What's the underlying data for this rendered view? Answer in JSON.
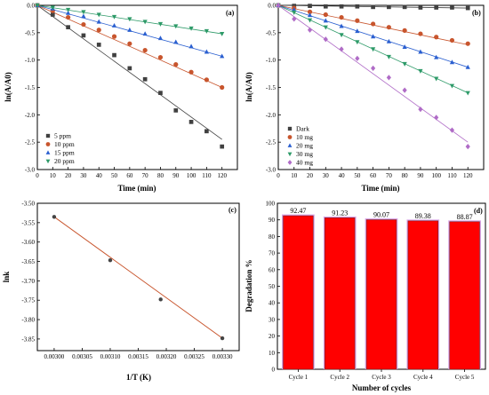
{
  "chart_data": [
    {
      "panel": "(a)",
      "type": "scatter",
      "xlabel": "Time (min)",
      "ylabel": "ln(A/A0)",
      "xlim": [
        0,
        130
      ],
      "ylim": [
        -3.0,
        0.0
      ],
      "xticks": [
        0,
        10,
        20,
        30,
        40,
        50,
        60,
        70,
        80,
        90,
        100,
        110,
        120
      ],
      "yticks": [
        0.0,
        -0.5,
        -1.0,
        -1.5,
        -2.0,
        -2.5,
        -3.0
      ],
      "legend_position": "bottom-left",
      "series": [
        {
          "name": "5 ppm",
          "color": "#404040",
          "marker": "square",
          "x": [
            0,
            10,
            20,
            30,
            40,
            50,
            60,
            70,
            80,
            90,
            100,
            110,
            120
          ],
          "y": [
            0.0,
            -0.17,
            -0.4,
            -0.55,
            -0.72,
            -0.91,
            -1.15,
            -1.35,
            -1.6,
            -1.92,
            -2.13,
            -2.3,
            -2.58
          ],
          "fit": [
            0.0,
            -2.45
          ]
        },
        {
          "name": "10 ppm",
          "color": "#c8552d",
          "marker": "circle",
          "x": [
            0,
            10,
            20,
            30,
            40,
            50,
            60,
            70,
            80,
            90,
            100,
            110,
            120
          ],
          "y": [
            0.0,
            -0.1,
            -0.22,
            -0.35,
            -0.45,
            -0.57,
            -0.7,
            -0.82,
            -0.95,
            -1.08,
            -1.22,
            -1.36,
            -1.5
          ],
          "fit": [
            0.0,
            -1.5
          ]
        },
        {
          "name": "15 ppm",
          "color": "#2a5fd0",
          "marker": "triangle",
          "x": [
            0,
            10,
            20,
            30,
            40,
            50,
            60,
            70,
            80,
            90,
            100,
            110,
            120
          ],
          "y": [
            0.0,
            -0.06,
            -0.14,
            -0.2,
            -0.3,
            -0.37,
            -0.45,
            -0.52,
            -0.6,
            -0.67,
            -0.75,
            -0.85,
            -0.93
          ],
          "fit": [
            0.0,
            -0.93
          ]
        },
        {
          "name": "20 ppm",
          "color": "#2d9a68",
          "marker": "triangle-down",
          "x": [
            0,
            10,
            20,
            30,
            40,
            50,
            60,
            70,
            80,
            90,
            100,
            110,
            120
          ],
          "y": [
            0.0,
            -0.04,
            -0.08,
            -0.12,
            -0.17,
            -0.21,
            -0.25,
            -0.3,
            -0.34,
            -0.38,
            -0.42,
            -0.47,
            -0.52
          ],
          "fit": [
            0.0,
            -0.52
          ]
        }
      ]
    },
    {
      "panel": "(b)",
      "type": "scatter",
      "xlabel": "Time (min)",
      "ylabel": "ln(A/A0)",
      "xlim": [
        0,
        130
      ],
      "ylim": [
        -3.0,
        0.0
      ],
      "xticks": [
        0,
        10,
        20,
        30,
        40,
        50,
        60,
        70,
        80,
        90,
        100,
        110,
        120
      ],
      "yticks": [
        0.0,
        -0.5,
        -1.0,
        -1.5,
        -2.0,
        -2.5,
        -3.0
      ],
      "legend_position": "bottom-left",
      "series": [
        {
          "name": "Dark",
          "color": "#404040",
          "marker": "square",
          "x": [
            0,
            10,
            20,
            30,
            40,
            50,
            60,
            70,
            80,
            90,
            100,
            110,
            120
          ],
          "y": [
            0.0,
            -0.01,
            -0.01,
            -0.02,
            -0.02,
            -0.02,
            -0.03,
            -0.03,
            -0.03,
            -0.04,
            -0.04,
            -0.04,
            -0.05
          ],
          "fit": [
            0.0,
            -0.05
          ]
        },
        {
          "name": "10 mg",
          "color": "#c8552d",
          "marker": "circle",
          "x": [
            0,
            10,
            20,
            30,
            40,
            50,
            60,
            70,
            80,
            90,
            100,
            110,
            120
          ],
          "y": [
            0.0,
            -0.05,
            -0.12,
            -0.17,
            -0.22,
            -0.28,
            -0.34,
            -0.4,
            -0.46,
            -0.52,
            -0.58,
            -0.64,
            -0.7
          ],
          "fit": [
            0.0,
            -0.72
          ]
        },
        {
          "name": "20 mg",
          "color": "#2a5fd0",
          "marker": "triangle",
          "x": [
            0,
            10,
            20,
            30,
            40,
            50,
            60,
            70,
            80,
            90,
            100,
            110,
            120
          ],
          "y": [
            0.0,
            -0.08,
            -0.18,
            -0.28,
            -0.38,
            -0.47,
            -0.57,
            -0.66,
            -0.76,
            -0.85,
            -0.95,
            -1.04,
            -1.13
          ],
          "fit": [
            0.0,
            -1.13
          ]
        },
        {
          "name": "30 mg",
          "color": "#2d9a68",
          "marker": "triangle-down",
          "x": [
            0,
            10,
            20,
            30,
            40,
            50,
            60,
            70,
            80,
            90,
            100,
            110,
            120
          ],
          "y": [
            0.0,
            -0.13,
            -0.27,
            -0.4,
            -0.54,
            -0.67,
            -0.8,
            -0.94,
            -1.07,
            -1.2,
            -1.34,
            -1.47,
            -1.6
          ],
          "fit": [
            0.0,
            -1.6
          ]
        },
        {
          "name": "40 mg",
          "color": "#b06cc7",
          "marker": "diamond",
          "x": [
            0,
            10,
            20,
            30,
            40,
            50,
            60,
            70,
            80,
            90,
            100,
            110,
            120
          ],
          "y": [
            0.0,
            -0.25,
            -0.45,
            -0.62,
            -0.8,
            -0.97,
            -1.15,
            -1.32,
            -1.55,
            -1.9,
            -2.05,
            -2.28,
            -2.58
          ],
          "fit": [
            0.0,
            -2.5
          ]
        }
      ]
    },
    {
      "panel": "(c)",
      "type": "line",
      "xlabel": "1/T (K)",
      "ylabel": "lnk",
      "xlim": [
        0.00297,
        0.00333
      ],
      "ylim": [
        -3.88,
        -3.5
      ],
      "xticks": [
        0.003,
        0.00305,
        0.0031,
        0.00315,
        0.0032,
        0.00325,
        0.0033
      ],
      "xtick_labels": [
        "0.00300",
        "0.00305",
        "0.00310",
        "0.00315",
        "0.00320",
        "0.00325",
        "0.00330"
      ],
      "yticks": [
        -3.5,
        -3.55,
        -3.6,
        -3.65,
        -3.7,
        -3.75,
        -3.8,
        -3.85
      ],
      "ytick_labels": [
        "-3.50",
        "-3.55",
        "-3.60",
        "-3.65",
        "-3.70",
        "-3.75",
        "-3.80",
        "-3.85"
      ],
      "series": [
        {
          "color": "#444444",
          "line_color": "#c8552d",
          "x": [
            0.003,
            0.0031,
            0.00319,
            0.0033
          ],
          "y": [
            -3.535,
            -3.647,
            -3.748,
            -3.848
          ]
        }
      ]
    },
    {
      "panel": "(d)",
      "type": "bar",
      "xlabel": "Number of cycles",
      "ylabel": "Degradation %",
      "ylim": [
        0,
        100
      ],
      "yticks": [
        0,
        10,
        20,
        30,
        40,
        50,
        60,
        70,
        80,
        90,
        100
      ],
      "categories": [
        "Cycle 1",
        "Cycle 2",
        "Cycle 3",
        "Cycle 4",
        "Cycle 5"
      ],
      "values": [
        92.47,
        91.23,
        90.07,
        89.38,
        88.87
      ],
      "value_labels": [
        "92.47",
        "91.23",
        "90.07",
        "89.38",
        "88.87"
      ],
      "bar_color": "#ff0000",
      "bar_edge_color": "#d9a3e6"
    }
  ]
}
